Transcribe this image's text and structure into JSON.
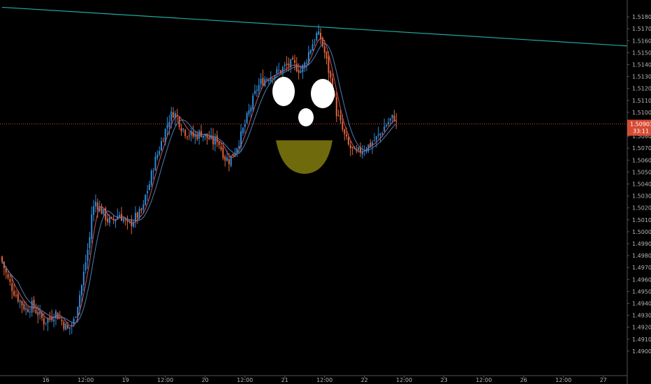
{
  "chart_data": {
    "type": "candlestick",
    "title": "",
    "xlabel": "",
    "ylabel": "",
    "grid": false,
    "ylim": [
      1.489,
      1.519
    ],
    "y_ticks": [
      "1.51800",
      "1.51700",
      "1.51600",
      "1.51500",
      "1.51400",
      "1.51300",
      "1.51200",
      "1.51100",
      "1.51000",
      "1.50800",
      "1.50700",
      "1.50600",
      "1.50500",
      "1.50400",
      "1.50300",
      "1.50200",
      "1.50100",
      "1.50000",
      "1.49900",
      "1.49800",
      "1.49700",
      "1.49600",
      "1.49500",
      "1.49400",
      "1.49300",
      "1.49200",
      "1.49100",
      "1.49000"
    ],
    "x_ticks": [
      "16",
      "12:00",
      "19",
      "12:00",
      "20",
      "12:00",
      "21",
      "12:00",
      "22",
      "12:00",
      "23",
      "12:00",
      "26",
      "12:00",
      "27"
    ],
    "x_tick_index": [
      22,
      42,
      62,
      82,
      102,
      122,
      142,
      162,
      182,
      202,
      222,
      242,
      262,
      282,
      302
    ],
    "last_price": "1.50903",
    "last_price_value": 1.50903,
    "countdown": "33:11",
    "colors": {
      "up": "#2f8bd8",
      "down": "#e0643a",
      "trendline": "#1fa9a1",
      "price_line": "#d0453b",
      "ma_fast": "#c9545f",
      "ma_slow": "#4c7fb7",
      "price_tag": "#d64a34",
      "axis_text": "#b7b7b7",
      "face_eyes": "#ffffff",
      "face_mouth": "#6f6a0c"
    },
    "trendline": {
      "start": {
        "index": 0,
        "price": 1.5188
      },
      "end": {
        "index": 320,
        "price": 1.5155
      }
    },
    "anchors": [
      [
        0,
        1.4975
      ],
      [
        3,
        1.496
      ],
      [
        6,
        1.495
      ],
      [
        9,
        1.4942
      ],
      [
        12,
        1.4935
      ],
      [
        15,
        1.4938
      ],
      [
        18,
        1.4932
      ],
      [
        21,
        1.4925
      ],
      [
        24,
        1.4928
      ],
      [
        27,
        1.4932
      ],
      [
        30,
        1.4925
      ],
      [
        33,
        1.4918
      ],
      [
        36,
        1.4925
      ],
      [
        38,
        1.494
      ],
      [
        40,
        1.4955
      ],
      [
        42,
        1.4975
      ],
      [
        44,
        1.4995
      ],
      [
        45,
        1.5015
      ],
      [
        47,
        1.5025
      ],
      [
        49,
        1.502
      ],
      [
        51,
        1.5015
      ],
      [
        53,
        1.501
      ],
      [
        55,
        1.5008
      ],
      [
        57,
        1.5012
      ],
      [
        59,
        1.5015
      ],
      [
        61,
        1.501
      ],
      [
        63,
        1.5005
      ],
      [
        65,
        1.5008
      ],
      [
        67,
        1.5012
      ],
      [
        69,
        1.5015
      ],
      [
        71,
        1.502
      ],
      [
        72,
        1.503
      ],
      [
        74,
        1.504
      ],
      [
        76,
        1.5055
      ],
      [
        78,
        1.5065
      ],
      [
        80,
        1.5075
      ],
      [
        82,
        1.5085
      ],
      [
        84,
        1.5095
      ],
      [
        86,
        1.51
      ],
      [
        88,
        1.5096
      ],
      [
        90,
        1.5088
      ],
      [
        92,
        1.5084
      ],
      [
        94,
        1.5082
      ],
      [
        96,
        1.508
      ],
      [
        98,
        1.5081
      ],
      [
        100,
        1.5083
      ],
      [
        102,
        1.508
      ],
      [
        104,
        1.5078
      ],
      [
        106,
        1.5075
      ],
      [
        108,
        1.5078
      ],
      [
        110,
        1.507
      ],
      [
        112,
        1.5062
      ],
      [
        114,
        1.506
      ],
      [
        116,
        1.5065
      ],
      [
        118,
        1.5072
      ],
      [
        120,
        1.508
      ],
      [
        122,
        1.509
      ],
      [
        124,
        1.51
      ],
      [
        126,
        1.511
      ],
      [
        128,
        1.512
      ],
      [
        130,
        1.5125
      ],
      [
        132,
        1.5128
      ],
      [
        134,
        1.513
      ],
      [
        136,
        1.5132
      ],
      [
        138,
        1.5133
      ],
      [
        140,
        1.5135
      ],
      [
        142,
        1.5138
      ],
      [
        144,
        1.514
      ],
      [
        146,
        1.514
      ],
      [
        148,
        1.5138
      ],
      [
        150,
        1.5135
      ],
      [
        152,
        1.514
      ],
      [
        154,
        1.515
      ],
      [
        156,
        1.5158
      ],
      [
        158,
        1.5165
      ],
      [
        160,
        1.5162
      ],
      [
        162,
        1.515
      ],
      [
        164,
        1.5135
      ],
      [
        166,
        1.512
      ],
      [
        168,
        1.51
      ],
      [
        170,
        1.509
      ],
      [
        172,
        1.508
      ],
      [
        174,
        1.5072
      ],
      [
        176,
        1.5068
      ],
      [
        178,
        1.5065
      ],
      [
        180,
        1.5068
      ],
      [
        182,
        1.507
      ],
      [
        184,
        1.5072
      ],
      [
        186,
        1.5075
      ],
      [
        188,
        1.5078
      ],
      [
        190,
        1.5082
      ],
      [
        192,
        1.5088
      ],
      [
        194,
        1.5092
      ],
      [
        196,
        1.5095
      ],
      [
        197,
        1.5096
      ],
      [
        198,
        1.509
      ]
    ]
  },
  "face": {
    "left_eye": "white-oval",
    "right_eye": "white-oval",
    "nose": "white-oval",
    "mouth": "olive-half-ellipse"
  }
}
